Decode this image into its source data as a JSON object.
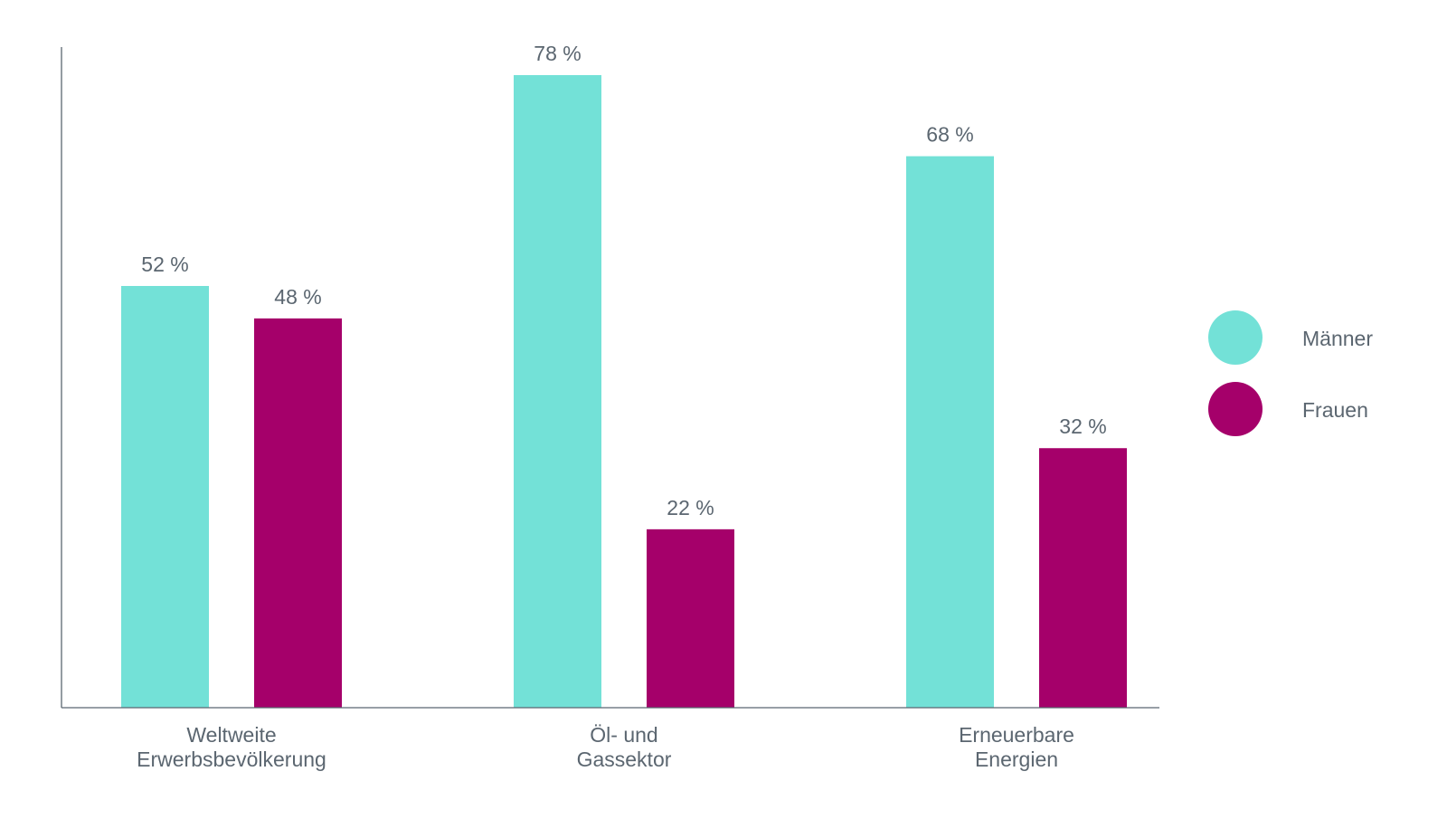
{
  "chart_data": {
    "type": "bar",
    "categories": [
      [
        "Weltweite",
        "Erwerbsbevölkerung"
      ],
      [
        "Öl- und",
        "Gassektor"
      ],
      [
        "Erneuerbare",
        "Energien"
      ]
    ],
    "series": [
      {
        "name": "Männer",
        "color": "#73e1d7",
        "values": [
          52,
          78,
          68
        ],
        "labels": [
          "52 %",
          "78 %",
          "68 %"
        ]
      },
      {
        "name": "Frauen",
        "color": "#a5006a",
        "values": [
          48,
          22,
          32
        ],
        "labels": [
          "48 %",
          "22 %",
          "32 %"
        ]
      }
    ],
    "ylim": [
      0,
      78
    ],
    "grid": false,
    "legend_position": "right",
    "axis_color": "#5b6670",
    "text_color": "#5b6670"
  }
}
